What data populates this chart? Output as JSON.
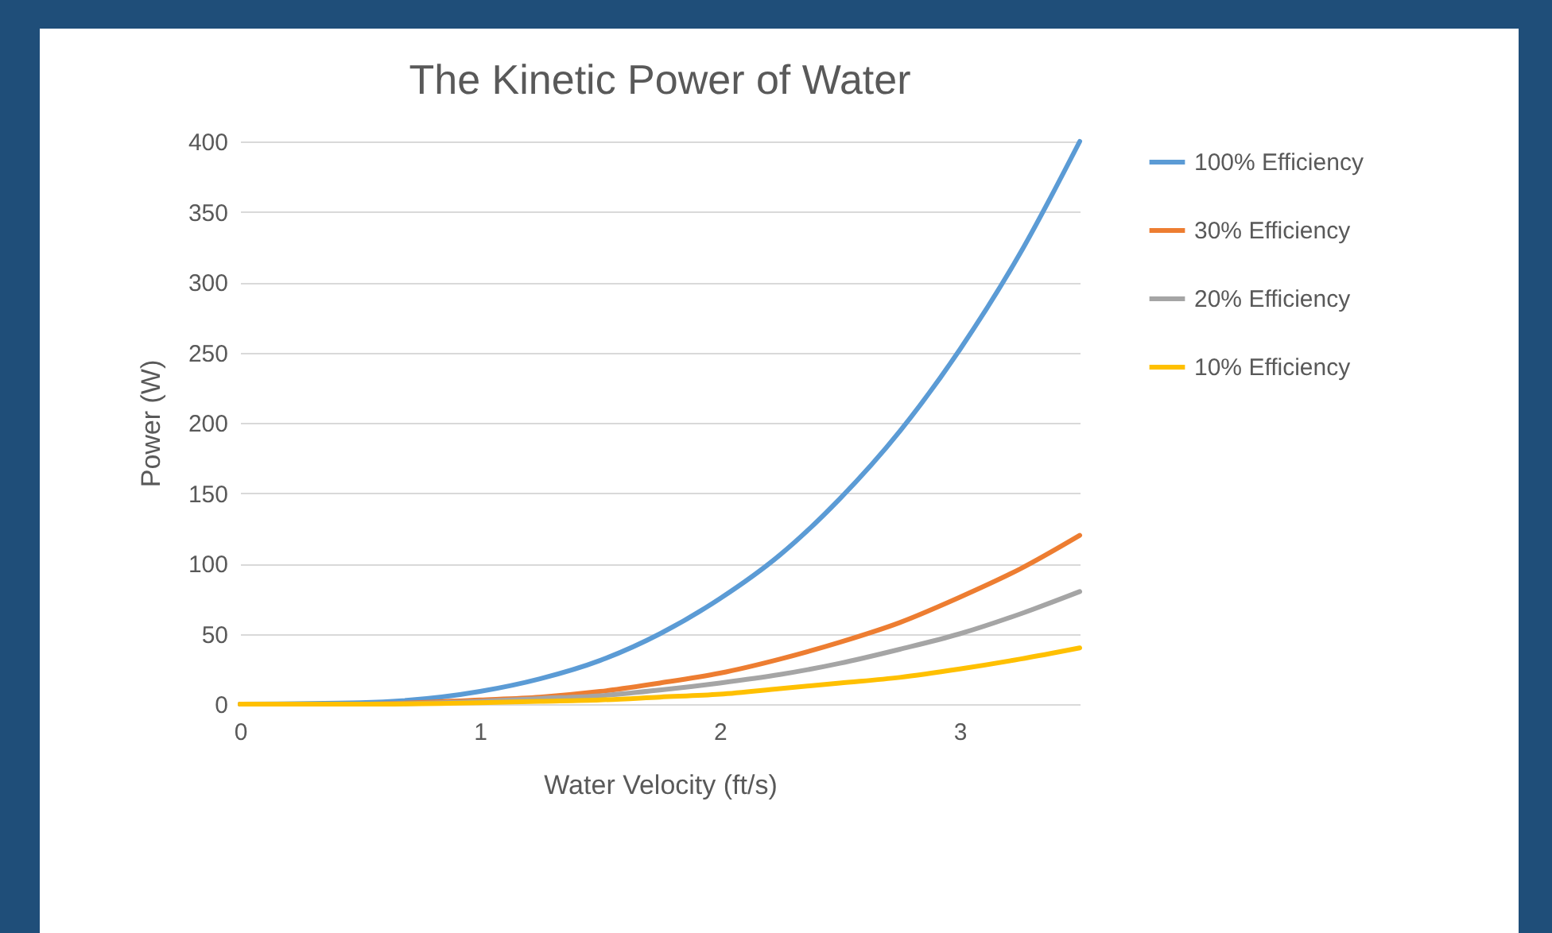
{
  "chart_data": {
    "type": "line",
    "title": "The Kinetic Power of Water",
    "xlabel": "Water Velocity (ft/s)",
    "ylabel": "Power (W)",
    "x": [
      0,
      0.5,
      1,
      1.25,
      1.5,
      1.75,
      2,
      2.25,
      2.5,
      2.75,
      3,
      3.25,
      3.5
    ],
    "series": [
      {
        "name": "100% Efficiency",
        "color": "#5b9bd5",
        "values": [
          0,
          1,
          9,
          18,
          31,
          50,
          75,
          106,
          146,
          194,
          252,
          320,
          400
        ]
      },
      {
        "name": "30% Efficiency",
        "color": "#ed7d31",
        "values": [
          0,
          0,
          3,
          5,
          9,
          15,
          22,
          32,
          44,
          58,
          76,
          96,
          120
        ]
      },
      {
        "name": "20% Efficiency",
        "color": "#a5a5a5",
        "values": [
          0,
          0,
          2,
          4,
          6,
          10,
          15,
          21,
          29,
          39,
          50,
          64,
          80
        ]
      },
      {
        "name": "10% Efficiency",
        "color": "#ffc000",
        "values": [
          0,
          0,
          1,
          2,
          3,
          5,
          7,
          11,
          15,
          19,
          25,
          32,
          40
        ]
      }
    ],
    "xlim": [
      0,
      3.5
    ],
    "xticks": [
      0,
      1,
      2,
      3
    ],
    "ylim": [
      0,
      400
    ],
    "yticks": [
      0,
      50,
      100,
      150,
      200,
      250,
      300,
      350,
      400
    ],
    "grid": "y",
    "legend": "right",
    "marker": "none",
    "line_style": "solid"
  }
}
